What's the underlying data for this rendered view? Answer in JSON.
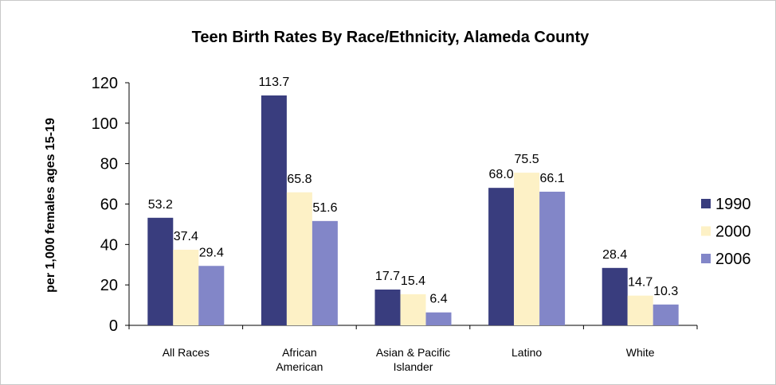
{
  "chart_data": {
    "type": "bar",
    "title": "Teen Birth Rates By Race/Ethnicity,  Alameda County",
    "y_label": "per 1,000 females ages 15-19",
    "categories": [
      "All Races",
      "African American",
      "Asian & Pacific Islander",
      "Latino",
      "White"
    ],
    "series": [
      {
        "name": "1990",
        "color": "#393d7e",
        "values": [
          53.2,
          113.7,
          17.7,
          68.0,
          28.4
        ],
        "value_labels": [
          "53.2",
          "113.7",
          "17.7",
          "68.0",
          "28.4"
        ]
      },
      {
        "name": "2000",
        "color": "#fdf1c6",
        "values": [
          37.4,
          65.8,
          15.4,
          75.5,
          14.7
        ],
        "value_labels": [
          "37.4",
          "65.8",
          "15.4",
          "75.5",
          "14.7"
        ]
      },
      {
        "name": "2006",
        "color": "#8286c8",
        "values": [
          29.4,
          51.6,
          6.4,
          66.1,
          10.3
        ],
        "value_labels": [
          "29.4",
          "51.6",
          "6.4",
          "66.1",
          "10.3"
        ]
      }
    ],
    "ylim": [
      0,
      120
    ],
    "yticks": [
      0,
      20,
      40,
      60,
      80,
      100,
      120
    ],
    "grid": false,
    "legend": "right"
  }
}
